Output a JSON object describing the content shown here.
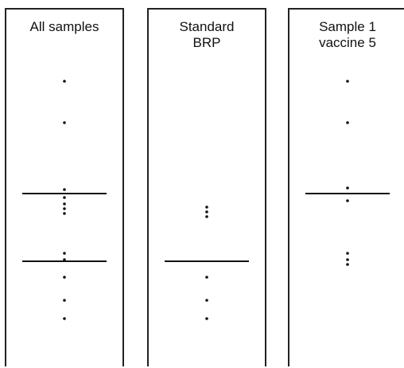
{
  "chart_data": {
    "type": "scatter",
    "panels": [
      {
        "title_lines": [
          "All samples"
        ],
        "points": [
          100,
          152,
          236,
          246,
          254,
          260,
          266,
          316,
          324,
          346,
          375,
          398
        ],
        "lines": [
          241,
          326
        ]
      },
      {
        "title_lines": [
          "Standard",
          "BRP"
        ],
        "points": [
          258,
          264,
          270,
          346,
          375,
          398
        ],
        "lines": [
          326
        ]
      },
      {
        "title_lines": [
          "Sample 1",
          "vaccine 5"
        ],
        "points": [
          100,
          152,
          234,
          250,
          316,
          324,
          330
        ],
        "lines": [
          241
        ]
      }
    ]
  }
}
